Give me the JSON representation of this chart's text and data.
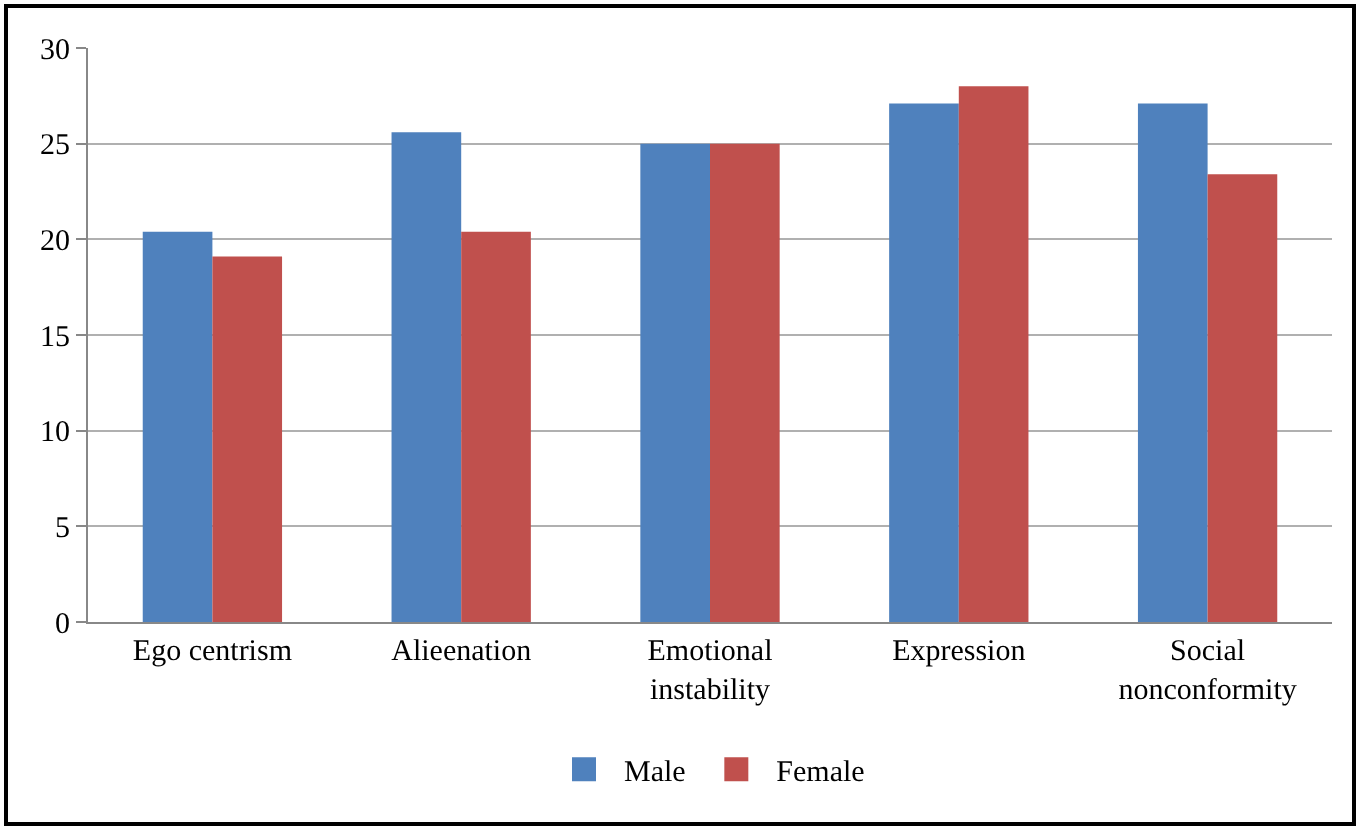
{
  "chart_data": {
    "type": "bar",
    "categories": [
      "Ego centrism",
      "Alieenation",
      "Emotional\ninstability",
      "Expression",
      "Social\nnonconformity"
    ],
    "series": [
      {
        "name": "Male",
        "color": "#4f81bd",
        "values": [
          20.4,
          25.6,
          25.0,
          27.1,
          27.1
        ]
      },
      {
        "name": "Female",
        "color": "#c0504d",
        "values": [
          19.1,
          20.4,
          25.0,
          28.0,
          23.4
        ]
      }
    ],
    "ylim": [
      0,
      30
    ],
    "yticks": [
      0,
      5,
      10,
      15,
      20,
      25,
      30
    ],
    "grid": "y",
    "legend": "bottom"
  }
}
